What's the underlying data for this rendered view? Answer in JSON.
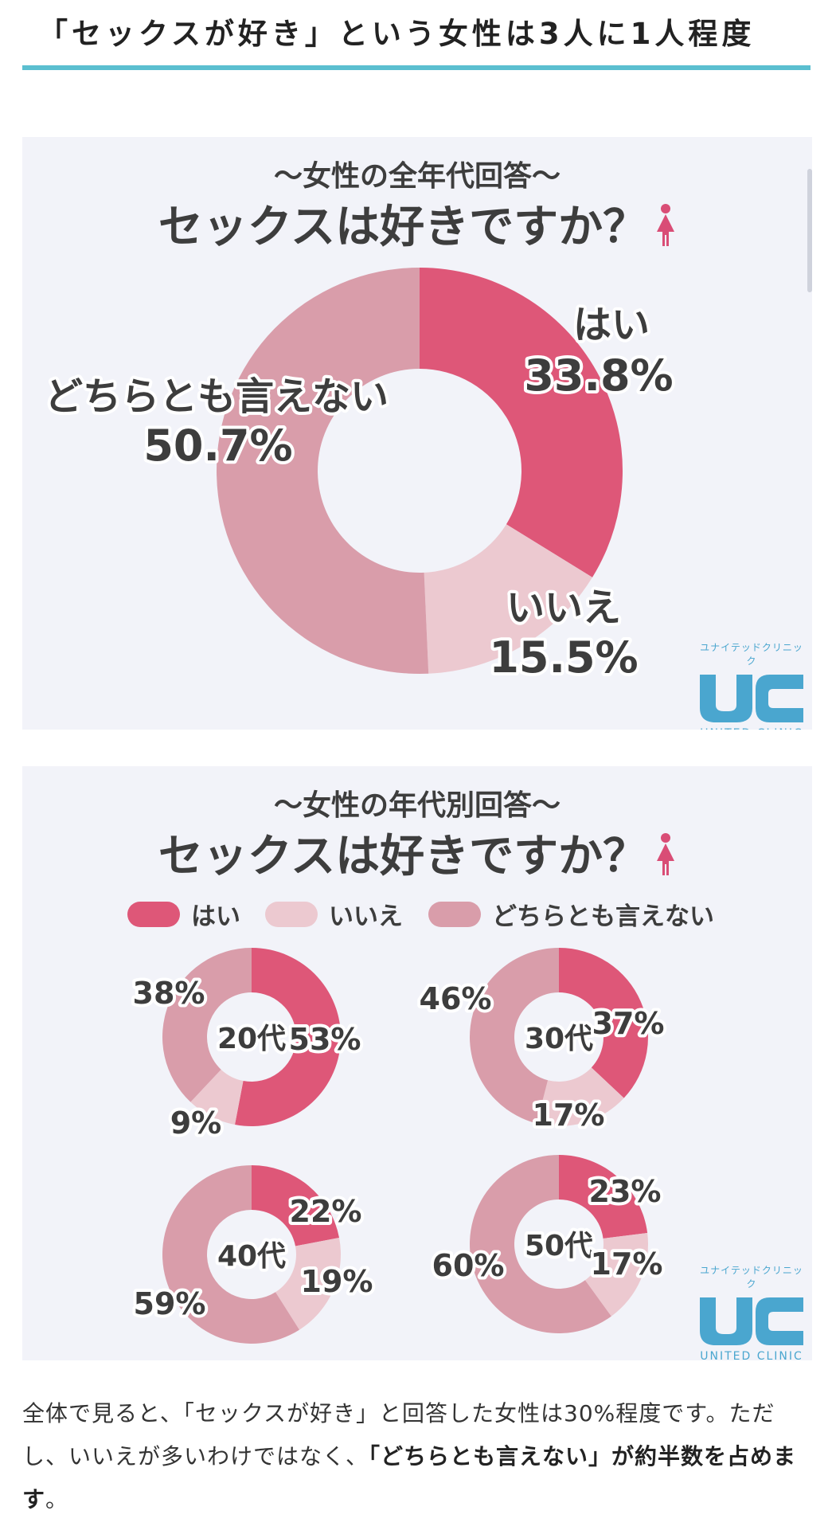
{
  "heading": "「セックスが好き」という女性は3人に1人程度",
  "colors": {
    "yes": "#de5778",
    "no": "#ecc9d0",
    "neutral": "#d99daa",
    "accent": "#5bbfd0",
    "logo": "#4aa6cf"
  },
  "panel1": {
    "subtitle": "〜女性の全年代回答〜",
    "title": "セックスは好きですか？",
    "icon": "woman-icon"
  },
  "panel2": {
    "subtitle": "〜女性の年代別回答〜",
    "title": "セックスは好きですか？",
    "icon": "woman-icon"
  },
  "legend": [
    "はい",
    "いいえ",
    "どちらとも言えない"
  ],
  "logo": {
    "kana": "ユナイテッドクリニック",
    "mark": "UC",
    "name": "UNITED CLINIC"
  },
  "chart_data": [
    {
      "type": "pie",
      "subtitle": "〜女性の全年代回答〜",
      "title": "セックスは好きですか？",
      "labels": [
        "はい",
        "いいえ",
        "どちらとも言えない"
      ],
      "values": [
        33.8,
        15.5,
        50.7
      ],
      "value_labels": [
        "33.8%",
        "15.5%",
        "50.7%"
      ]
    },
    {
      "type": "pie",
      "subtitle": "〜女性の年代別回答〜",
      "title": "セックスは好きですか？",
      "legend": [
        "はい",
        "いいえ",
        "どちらとも言えない"
      ],
      "groups": [
        {
          "name": "20代",
          "values": [
            53,
            9,
            38
          ],
          "value_labels": [
            "53%",
            "9%",
            "38%"
          ]
        },
        {
          "name": "30代",
          "values": [
            37,
            17,
            46
          ],
          "value_labels": [
            "37%",
            "17%",
            "46%"
          ]
        },
        {
          "name": "40代",
          "values": [
            22,
            19,
            59
          ],
          "value_labels": [
            "22%",
            "19%",
            "59%"
          ]
        },
        {
          "name": "50代",
          "values": [
            23,
            17,
            60
          ],
          "value_labels": [
            "23%",
            "17%",
            "60%"
          ]
        }
      ]
    }
  ],
  "paragraph": {
    "part1": "全体で見ると、「セックスが好き」と回答した女性は30%程度です。ただし、いいえが多いわけではなく、",
    "bold": "「どちらとも言えない」が約半数を占めます",
    "part2": "。"
  }
}
